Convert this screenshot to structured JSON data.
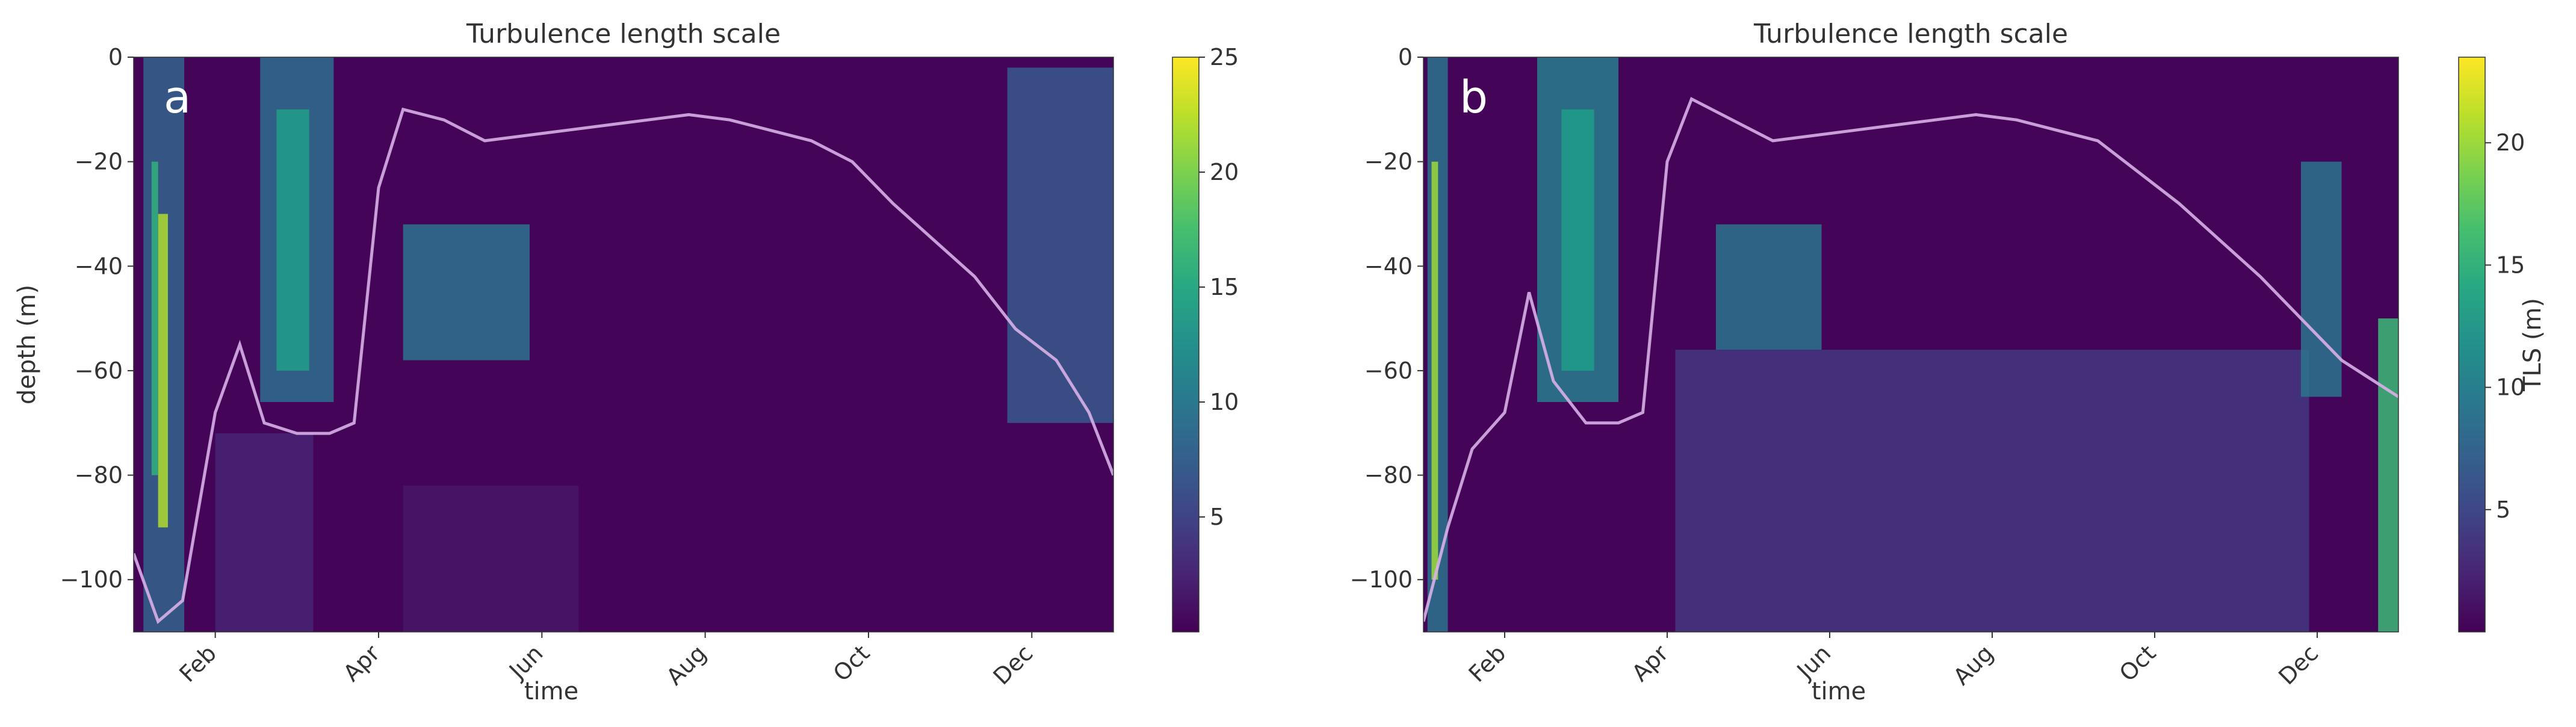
{
  "chart_data": [
    {
      "type": "heatmap",
      "panel_label": "a",
      "title": "Turbulence length scale",
      "xlabel": "time",
      "ylabel": "depth (m)",
      "colorbar_label": "",
      "x_ticks": [
        "Feb",
        "Apr",
        "Jun",
        "Aug",
        "Oct",
        "Dec"
      ],
      "x_tick_months": [
        2,
        4,
        6,
        8,
        10,
        12
      ],
      "x_range_months": [
        1,
        13
      ],
      "y_ticks": [
        0,
        -20,
        -40,
        -60,
        -80,
        -100
      ],
      "ylim": [
        -110,
        0
      ],
      "colorbar_ticks": [
        5,
        10,
        15,
        20,
        25
      ],
      "colorbar_range": [
        0,
        25
      ],
      "colormap": "viridis",
      "background_value": 0.3,
      "line_color": "#d8b0e8",
      "regions": [
        {
          "t0": 1.12,
          "t1": 1.62,
          "d0": 0,
          "d1": -110,
          "value": 8.0
        },
        {
          "t0": 1.3,
          "t1": 1.42,
          "d0": -30,
          "d1": -90,
          "value": 22.0
        },
        {
          "t0": 1.22,
          "t1": 1.3,
          "d0": -20,
          "d1": -80,
          "value": 16.0
        },
        {
          "t0": 2.55,
          "t1": 3.45,
          "d0": 0,
          "d1": -66,
          "value": 9.0
        },
        {
          "t0": 2.75,
          "t1": 3.15,
          "d0": -10,
          "d1": -60,
          "value": 14.0
        },
        {
          "t0": 2.0,
          "t1": 3.2,
          "d0": -72,
          "d1": -110,
          "value": 2.5
        },
        {
          "t0": 4.3,
          "t1": 5.85,
          "d0": -32,
          "d1": -58,
          "value": 9.5
        },
        {
          "t0": 4.3,
          "t1": 6.45,
          "d0": -82,
          "d1": -110,
          "value": 1.5
        },
        {
          "t0": 11.7,
          "t1": 13.0,
          "d0": -2,
          "d1": -70,
          "value": 7.0
        }
      ],
      "mld_months": [
        1.0,
        1.3,
        1.6,
        2.0,
        2.3,
        2.6,
        3.0,
        3.4,
        3.7,
        4.0,
        4.3,
        4.8,
        5.3,
        5.8,
        6.3,
        6.8,
        7.3,
        7.8,
        8.3,
        8.8,
        9.3,
        9.8,
        10.3,
        10.8,
        11.3,
        11.8,
        12.3,
        12.7,
        13.0
      ],
      "mld_depth_m": [
        -95,
        -108,
        -104,
        -68,
        -55,
        -70,
        -72,
        -72,
        -70,
        -25,
        -10,
        -12,
        -16,
        -15,
        -14,
        -13,
        -12,
        -11,
        -12,
        -14,
        -16,
        -20,
        -28,
        -35,
        -42,
        -52,
        -58,
        -68,
        -80
      ]
    },
    {
      "type": "heatmap",
      "panel_label": "b",
      "title": "Turbulence length scale",
      "xlabel": "time",
      "ylabel": "",
      "colorbar_label": "TLS (m)",
      "x_ticks": [
        "Feb",
        "Apr",
        "Jun",
        "Aug",
        "Oct",
        "Dec"
      ],
      "x_tick_months": [
        2,
        4,
        6,
        8,
        10,
        12
      ],
      "x_range_months": [
        1,
        13
      ],
      "y_ticks": [
        0,
        -20,
        -40,
        -60,
        -80,
        -100
      ],
      "ylim": [
        -110,
        0
      ],
      "colorbar_ticks": [
        5,
        10,
        15,
        20
      ],
      "colorbar_range": [
        0,
        23.5
      ],
      "colormap": "viridis",
      "background_value": 0.3,
      "line_color": "#d8b0e8",
      "regions": [
        {
          "t0": 1.05,
          "t1": 1.3,
          "d0": 0,
          "d1": -110,
          "value": 9.0
        },
        {
          "t0": 1.1,
          "t1": 1.18,
          "d0": -20,
          "d1": -100,
          "value": 20.0
        },
        {
          "t0": 2.4,
          "t1": 3.4,
          "d0": 0,
          "d1": -66,
          "value": 10.0
        },
        {
          "t0": 2.7,
          "t1": 3.1,
          "d0": -10,
          "d1": -60,
          "value": 13.0
        },
        {
          "t0": 4.6,
          "t1": 5.9,
          "d0": -32,
          "d1": -56,
          "value": 9.0
        },
        {
          "t0": 4.1,
          "t1": 11.9,
          "d0": -56,
          "d1": -110,
          "value": 3.8
        },
        {
          "t0": 11.8,
          "t1": 12.3,
          "d0": -20,
          "d1": -65,
          "value": 9.0
        },
        {
          "t0": 12.75,
          "t1": 13.0,
          "d0": -50,
          "d1": -110,
          "value": 16.0
        }
      ],
      "mld_months": [
        1.0,
        1.3,
        1.6,
        2.0,
        2.3,
        2.6,
        3.0,
        3.4,
        3.7,
        4.0,
        4.3,
        4.8,
        5.3,
        5.8,
        6.3,
        6.8,
        7.3,
        7.8,
        8.3,
        8.8,
        9.3,
        9.8,
        10.3,
        10.8,
        11.3,
        11.8,
        12.3,
        12.7,
        13.0
      ],
      "mld_depth_m": [
        -108,
        -90,
        -75,
        -68,
        -45,
        -62,
        -70,
        -70,
        -68,
        -20,
        -8,
        -12,
        -16,
        -15,
        -14,
        -13,
        -12,
        -11,
        -12,
        -14,
        -16,
        -22,
        -28,
        -35,
        -42,
        -50,
        -58,
        -62,
        -65
      ]
    }
  ]
}
